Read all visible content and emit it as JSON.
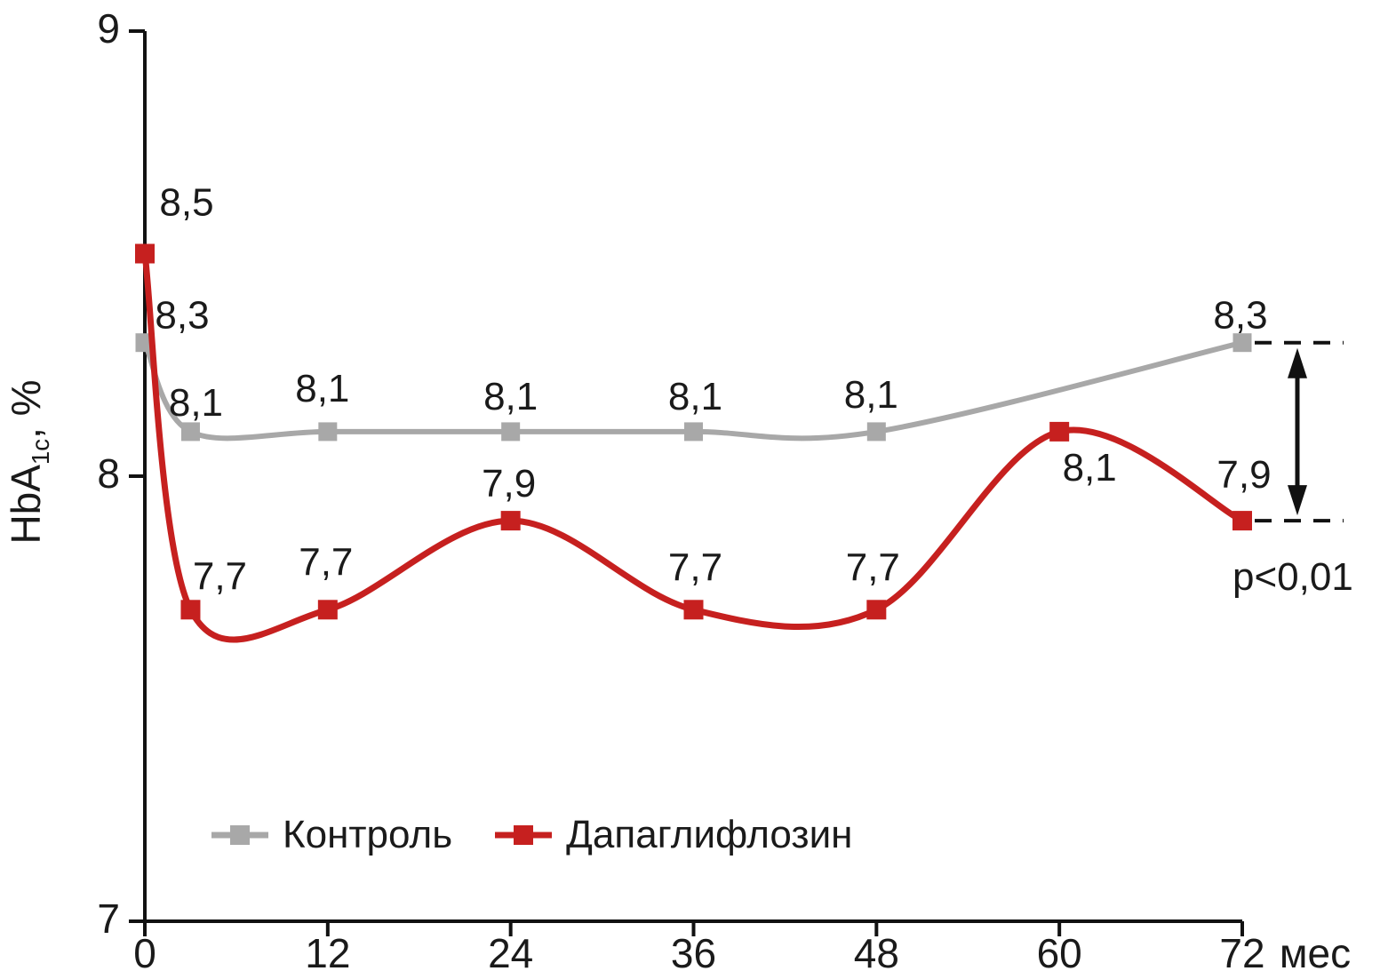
{
  "chart_data": {
    "type": "line",
    "title": "",
    "xlabel": "мес",
    "ylabel": "HbA1c, %",
    "ylabel_parts": {
      "pre": "HbA",
      "sub": "1c",
      "post": ", %"
    },
    "xlim": [
      0,
      72
    ],
    "ylim": [
      7,
      9
    ],
    "xticks": [
      "0",
      "12",
      "24",
      "36",
      "48",
      "60",
      "72"
    ],
    "yticks": [
      "9",
      "8",
      "7"
    ],
    "grid": false,
    "legend_position": "inside-bottom-left",
    "series": [
      {
        "name": "Контроль",
        "color": "#a8a8a8",
        "x": [
          0,
          3,
          12,
          24,
          36,
          48,
          72
        ],
        "values": [
          8.3,
          8.1,
          8.1,
          8.1,
          8.1,
          8.1,
          8.3
        ],
        "point_labels": [
          "8,3",
          "8,1",
          "8,1",
          "8,1",
          "8,1",
          "8,1",
          "8,3"
        ]
      },
      {
        "name": "Дапаглифлозин",
        "color": "#c6201f",
        "x": [
          0,
          3,
          12,
          24,
          36,
          48,
          60,
          72
        ],
        "values": [
          8.5,
          7.7,
          7.7,
          7.9,
          7.7,
          7.7,
          8.1,
          7.9
        ],
        "point_labels": [
          "8,5",
          "7,7",
          "7,7",
          "7,9",
          "7,7",
          "7,7",
          "8,1",
          "7,9"
        ]
      }
    ],
    "annotation": {
      "text": "p<0,01",
      "color": "#c6201f",
      "refers_to": "difference between series at 72 months, marked by dashed lines and double arrow"
    },
    "label_offsets": {
      "Контроль": [
        [
          42,
          -31
        ],
        [
          6,
          -33
        ],
        [
          -6,
          -49
        ],
        [
          0,
          -40
        ],
        [
          2,
          -40
        ],
        [
          -6,
          -42
        ],
        [
          -2,
          -31
        ]
      ],
      "Дапаглифлозин": [
        [
          47,
          -58
        ],
        [
          33,
          -38
        ],
        [
          -2,
          -54
        ],
        [
          -2,
          -42
        ],
        [
          2,
          -48
        ],
        [
          -4,
          -48
        ],
        [
          34,
          40
        ],
        [
          2,
          -52
        ]
      ]
    },
    "axis_color": "#111111",
    "text_color": "#1a1a1a"
  }
}
